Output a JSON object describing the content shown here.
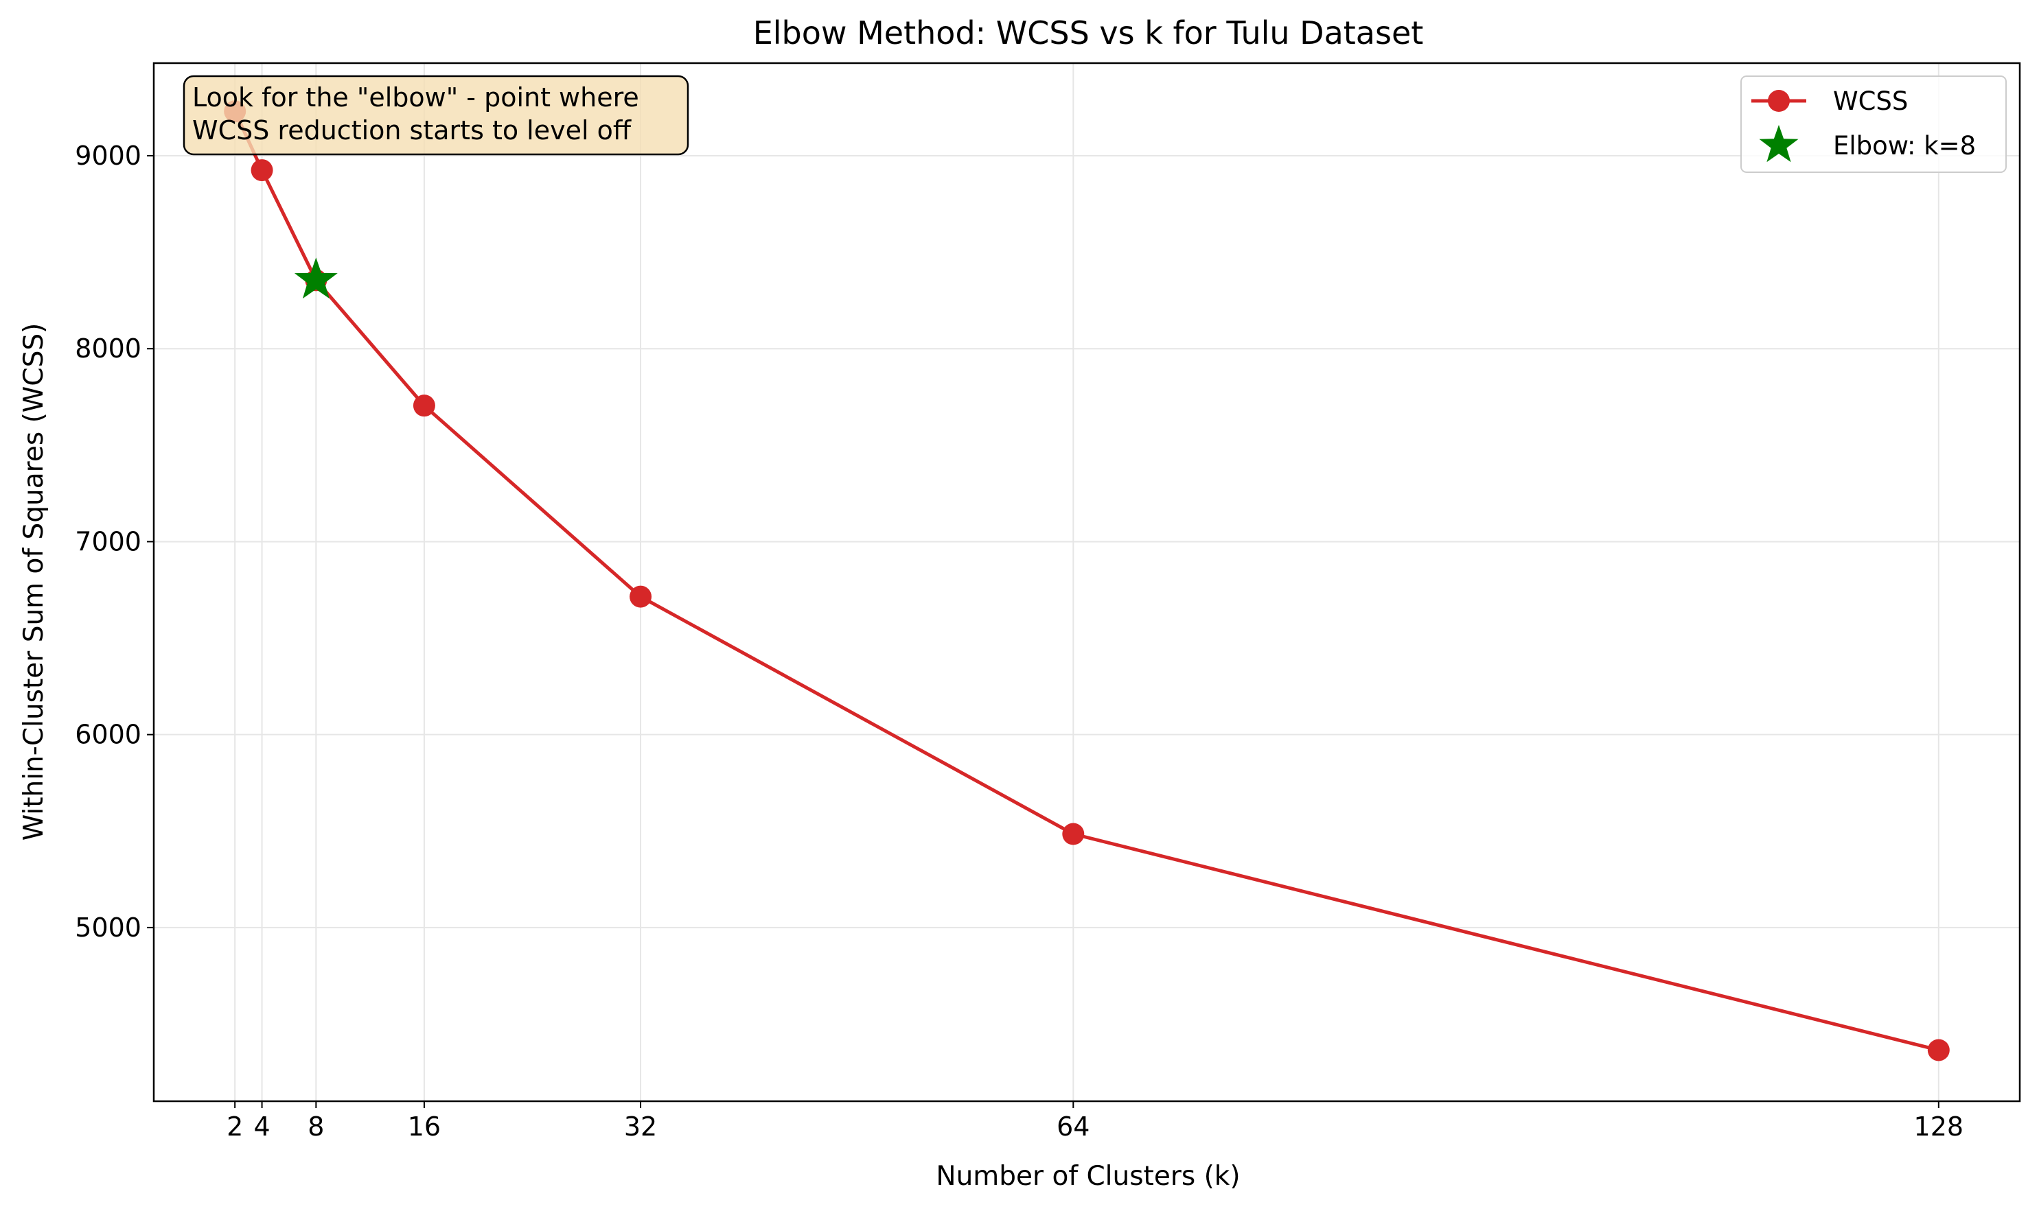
{
  "chart_data": {
    "type": "line",
    "title": "Elbow Method: WCSS vs k for Tulu Dataset",
    "xlabel": "Number of Clusters (k)",
    "ylabel": "Within-Cluster Sum of Squares (WCSS)",
    "x": [
      2,
      4,
      8,
      16,
      32,
      64,
      128
    ],
    "series": [
      {
        "name": "WCSS",
        "color": "#d62728",
        "values": [
          9230,
          8925,
          8355,
          7705,
          6715,
          5485,
          4365
        ]
      }
    ],
    "elbow": {
      "label": "Elbow: k=8",
      "x": 8,
      "y": 8355,
      "color": "#008000",
      "marker": "star"
    },
    "xticks": [
      2,
      4,
      8,
      16,
      32,
      64,
      128
    ],
    "yticks": [
      5000,
      6000,
      7000,
      8000,
      9000
    ],
    "xlim": [
      -4,
      134
    ],
    "ylim": [
      4100,
      9480
    ],
    "grid": true,
    "legend_position": "top-right",
    "annotation": {
      "lines": [
        "Look for the \"elbow\" - point where",
        "WCSS reduction starts to level off"
      ],
      "background": "#f5deb3"
    }
  }
}
